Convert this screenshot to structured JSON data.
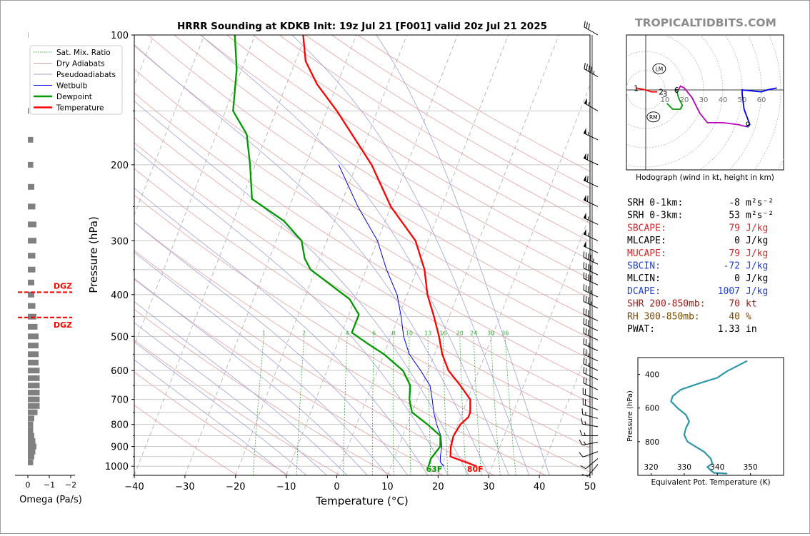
{
  "title": "HRRR Sounding at KDKB Init: 19z Jul 21 [F001] valid 20z Jul 21 2025",
  "watermark": "TROPICALTIDBITS.COM",
  "chart_data": [
    {
      "id": "skewt",
      "type": "line",
      "xlabel": "Temperature (°C)",
      "ylabel": "Pressure (hPa)",
      "xlim": [
        -40,
        50
      ],
      "ylim": [
        1050,
        100
      ],
      "y_scale": "log",
      "x_ticks": [
        -40,
        -30,
        -20,
        -10,
        0,
        10,
        20,
        30,
        40,
        50
      ],
      "y_ticks": [
        100,
        200,
        300,
        400,
        500,
        600,
        700,
        800,
        900,
        1000
      ],
      "mixing_ratio_labels": [
        1,
        2,
        4,
        6,
        8,
        10,
        13,
        16,
        20,
        24,
        30,
        36
      ],
      "legend": [
        "Sat. Mix. Ratio",
        "Dry Adiabats",
        "Pseudoadiabats",
        "Wetbulb",
        "Dewpoint",
        "Temperature"
      ],
      "legend_position": "top-left",
      "surface_temp_label": "80F",
      "surface_dew_label": "63F",
      "colors": {
        "temperature": "#ff0000",
        "dewpoint": "#009900",
        "wetbulb": "#0000ee"
      },
      "series": [
        {
          "name": "Temperature",
          "points": [
            [
              26.9,
              1000
            ],
            [
              24,
              975
            ],
            [
              21,
              950
            ],
            [
              20.3,
              900
            ],
            [
              20,
              850
            ],
            [
              20.5,
              800
            ],
            [
              21.5,
              770
            ],
            [
              21.5,
              750
            ],
            [
              20.5,
              700
            ],
            [
              17.5,
              650
            ],
            [
              14,
              600
            ],
            [
              11.5,
              550
            ],
            [
              9.5,
              500
            ],
            [
              7,
              450
            ],
            [
              4,
              400
            ],
            [
              1.5,
              350
            ],
            [
              -2.5,
              300
            ],
            [
              -10,
              250
            ],
            [
              -17,
              200
            ],
            [
              -28,
              150
            ],
            [
              -34,
              130
            ],
            [
              -38,
              115
            ],
            [
              -40.5,
              100
            ]
          ]
        },
        {
          "name": "Dewpoint",
          "points": [
            [
              17.4,
              1000
            ],
            [
              17.3,
              960
            ],
            [
              18.2,
              900
            ],
            [
              17.4,
              850
            ],
            [
              14,
              800
            ],
            [
              10,
              750
            ],
            [
              8.5,
              700
            ],
            [
              7.6,
              650
            ],
            [
              5,
              600
            ],
            [
              0,
              550
            ],
            [
              -4,
              520
            ],
            [
              -8,
              490
            ],
            [
              -8,
              470
            ],
            [
              -8,
              445
            ],
            [
              -11,
              410
            ],
            [
              -21,
              350
            ],
            [
              -23,
              330
            ],
            [
              -25,
              300
            ],
            [
              -30,
              270
            ],
            [
              -38,
              240
            ],
            [
              -41,
              200
            ],
            [
              -44,
              170
            ],
            [
              -48.5,
              150
            ],
            [
              -51,
              120
            ],
            [
              -54,
              100
            ]
          ]
        },
        {
          "name": "Wetbulb",
          "points": [
            [
              20.5,
              1000
            ],
            [
              19.5,
              980
            ],
            [
              19,
              950
            ],
            [
              18.5,
              900
            ],
            [
              17.5,
              850
            ],
            [
              15.8,
              800
            ],
            [
              14.3,
              750
            ],
            [
              13,
              700
            ],
            [
              11.5,
              650
            ],
            [
              8.5,
              600
            ],
            [
              5,
              550
            ],
            [
              2.5,
              500
            ],
            [
              0.5,
              450
            ],
            [
              -2,
              400
            ],
            [
              -6,
              350
            ],
            [
              -10,
              300
            ],
            [
              -16.5,
              250
            ],
            [
              -23.5,
              200
            ]
          ]
        }
      ],
      "wind_barbs": [
        {
          "p": 990,
          "spd": 10,
          "dir": 220
        },
        {
          "p": 960,
          "spd": 10,
          "dir": 230
        },
        {
          "p": 925,
          "spd": 10,
          "dir": 250
        },
        {
          "p": 880,
          "spd": 15,
          "dir": 260
        },
        {
          "p": 850,
          "spd": 15,
          "dir": 270
        },
        {
          "p": 810,
          "spd": 15,
          "dir": 280
        },
        {
          "p": 775,
          "spd": 15,
          "dir": 285
        },
        {
          "p": 740,
          "spd": 20,
          "dir": 290
        },
        {
          "p": 700,
          "spd": 20,
          "dir": 290
        },
        {
          "p": 665,
          "spd": 20,
          "dir": 295
        },
        {
          "p": 630,
          "spd": 20,
          "dir": 295
        },
        {
          "p": 600,
          "spd": 25,
          "dir": 295
        },
        {
          "p": 570,
          "spd": 25,
          "dir": 295
        },
        {
          "p": 540,
          "spd": 25,
          "dir": 295
        },
        {
          "p": 510,
          "spd": 30,
          "dir": 295
        },
        {
          "p": 485,
          "spd": 30,
          "dir": 295
        },
        {
          "p": 460,
          "spd": 30,
          "dir": 295
        },
        {
          "p": 430,
          "spd": 35,
          "dir": 295
        },
        {
          "p": 405,
          "spd": 35,
          "dir": 295
        },
        {
          "p": 380,
          "spd": 40,
          "dir": 295
        },
        {
          "p": 360,
          "spd": 40,
          "dir": 295
        },
        {
          "p": 340,
          "spd": 45,
          "dir": 295
        },
        {
          "p": 320,
          "spd": 50,
          "dir": 295
        },
        {
          "p": 300,
          "spd": 55,
          "dir": 295
        },
        {
          "p": 275,
          "spd": 55,
          "dir": 295
        },
        {
          "p": 250,
          "spd": 60,
          "dir": 295
        },
        {
          "p": 225,
          "spd": 60,
          "dir": 295
        },
        {
          "p": 200,
          "spd": 60,
          "dir": 295
        },
        {
          "p": 175,
          "spd": 55,
          "dir": 295
        },
        {
          "p": 150,
          "spd": 55,
          "dir": 300
        },
        {
          "p": 125,
          "spd": 45,
          "dir": 300
        },
        {
          "p": 100,
          "spd": 30,
          "dir": 300
        }
      ]
    },
    {
      "id": "omega",
      "type": "bar",
      "xlabel": "Omega (Pa/s)",
      "x_ticks": [
        0,
        -1,
        -2
      ],
      "xlim": [
        0.5,
        -2.3
      ],
      "dgz_label": "DGZ",
      "dgz_levels": [
        395,
        452
      ],
      "bars": [
        {
          "p": 980,
          "v": -0.25
        },
        {
          "p": 950,
          "v": -0.3
        },
        {
          "p": 925,
          "v": -0.35
        },
        {
          "p": 900,
          "v": -0.4
        },
        {
          "p": 875,
          "v": -0.35
        },
        {
          "p": 850,
          "v": -0.3
        },
        {
          "p": 825,
          "v": -0.25
        },
        {
          "p": 800,
          "v": -0.25
        },
        {
          "p": 775,
          "v": -0.3
        },
        {
          "p": 750,
          "v": -0.45
        },
        {
          "p": 725,
          "v": -0.55
        },
        {
          "p": 700,
          "v": -0.55
        },
        {
          "p": 675,
          "v": -0.55
        },
        {
          "p": 650,
          "v": -0.55
        },
        {
          "p": 625,
          "v": -0.55
        },
        {
          "p": 600,
          "v": -0.55
        },
        {
          "p": 575,
          "v": -0.5
        },
        {
          "p": 550,
          "v": -0.5
        },
        {
          "p": 525,
          "v": -0.5
        },
        {
          "p": 500,
          "v": -0.5
        },
        {
          "p": 475,
          "v": -0.45
        },
        {
          "p": 450,
          "v": -0.4
        },
        {
          "p": 425,
          "v": -0.35
        },
        {
          "p": 400,
          "v": -0.3
        },
        {
          "p": 375,
          "v": -0.3
        },
        {
          "p": 350,
          "v": -0.35
        },
        {
          "p": 325,
          "v": -0.35
        },
        {
          "p": 300,
          "v": -0.4
        },
        {
          "p": 275,
          "v": -0.4
        },
        {
          "p": 250,
          "v": -0.35
        },
        {
          "p": 225,
          "v": -0.3
        },
        {
          "p": 200,
          "v": -0.25
        },
        {
          "p": 175,
          "v": -0.25
        },
        {
          "p": 150,
          "v": -0.05
        },
        {
          "p": 100,
          "v": -0.02
        }
      ]
    },
    {
      "id": "hodograph",
      "type": "line",
      "caption": "Hodograph (wind in kt, height in km)",
      "ring_labels": [
        10,
        20,
        30,
        40,
        50,
        60
      ],
      "storm_markers": [
        {
          "label": "LM",
          "u": 7,
          "v": 11
        },
        {
          "label": "RM",
          "u": 4,
          "v": -14
        }
      ],
      "height_labels": [
        {
          "t": "1",
          "u": -5,
          "v": 1
        },
        {
          "t": "2",
          "u": 8,
          "v": -1
        },
        {
          "t": "3",
          "u": 10,
          "v": -2
        },
        {
          "t": "6",
          "u": 16,
          "v": 0
        },
        {
          "t": "9",
          "u": 53,
          "v": -18
        }
      ],
      "series": [
        {
          "name": "0-1 km",
          "color": "#ff0000",
          "points": [
            [
              -5,
              1
            ],
            [
              0,
              0
            ],
            [
              3,
              -1
            ],
            [
              6,
              -1
            ]
          ]
        },
        {
          "name": "1-3 km",
          "color": "#009900",
          "points": [
            [
              16,
              0
            ],
            [
              17,
              -4
            ],
            [
              19,
              -8
            ],
            [
              18,
              -10
            ],
            [
              14,
              -10
            ],
            [
              11,
              -7
            ]
          ]
        },
        {
          "name": "3-6 km",
          "color": "#bb00bb",
          "points": [
            [
              17,
              0
            ],
            [
              18,
              2
            ],
            [
              20,
              1
            ],
            [
              24,
              -4
            ],
            [
              28,
              -12
            ],
            [
              32,
              -17
            ],
            [
              40,
              -17
            ],
            [
              48,
              -18
            ],
            [
              52,
              -19
            ]
          ]
        },
        {
          "name": "6-9 km",
          "color": "#0000ee",
          "points": [
            [
              52,
              -19
            ],
            [
              54,
              -18
            ],
            [
              51,
              -10
            ],
            [
              50,
              -2
            ],
            [
              50,
              0
            ],
            [
              60,
              -1
            ],
            [
              63,
              0
            ],
            [
              68,
              1
            ]
          ]
        }
      ]
    },
    {
      "id": "theta_e",
      "type": "line",
      "xlabel": "Equivalent Pot. Temperature (K)",
      "ylabel": "Pressure (hPa)",
      "x_ticks": [
        320,
        330,
        340,
        350
      ],
      "y_ticks": [
        400,
        600,
        800
      ],
      "xlim": [
        316,
        360
      ],
      "ylim": [
        1000,
        300
      ],
      "color": "#2e97a8",
      "series": [
        {
          "name": "theta-e",
          "points": [
            [
              343,
              990
            ],
            [
              339,
              985
            ],
            [
              338,
              970
            ],
            [
              337,
              950
            ],
            [
              338.5,
              930
            ],
            [
              338,
              900
            ],
            [
              336,
              860
            ],
            [
              333.5,
              830
            ],
            [
              331,
              800
            ],
            [
              330,
              760
            ],
            [
              330.5,
              720
            ],
            [
              331.5,
              680
            ],
            [
              330.5,
              640
            ],
            [
              328,
              600
            ],
            [
              326,
              560
            ],
            [
              326.5,
              530
            ],
            [
              329,
              490
            ],
            [
              335,
              450
            ],
            [
              340,
              420
            ],
            [
              343,
              380
            ],
            [
              346,
              350
            ],
            [
              349,
              320
            ]
          ]
        }
      ]
    }
  ],
  "indices": [
    {
      "label": "SRH 0-1km:",
      "value": "-8",
      "unit": "m²s⁻²",
      "color": "#000000"
    },
    {
      "label": "SRH 0-3km:",
      "value": "53",
      "unit": "m²s⁻²",
      "color": "#000000"
    },
    {
      "label": "SBCAPE:",
      "value": "79",
      "unit": "J/kg",
      "color": "#d62728"
    },
    {
      "label": "MLCAPE:",
      "value": "0",
      "unit": "J/kg",
      "color": "#000000"
    },
    {
      "label": "MUCAPE:",
      "value": "79",
      "unit": "J/kg",
      "color": "#d62728"
    },
    {
      "label": "SBCIN:",
      "value": "-72",
      "unit": "J/kg",
      "color": "#1f3fd6"
    },
    {
      "label": "MLCIN:",
      "value": "0",
      "unit": "J/kg",
      "color": "#000000"
    },
    {
      "label": "DCAPE:",
      "value": "1007",
      "unit": "J/kg",
      "color": "#1f3fd6"
    },
    {
      "label": "SHR 200-850mb:",
      "value": "70",
      "unit": "kt",
      "color": "#a31a1a"
    },
    {
      "label": "RH 300-850mb:",
      "value": "40",
      "unit": "%",
      "color": "#7a4a00"
    },
    {
      "label": "PWAT:",
      "value": "1.33",
      "unit": "in",
      "color": "#000000"
    }
  ]
}
